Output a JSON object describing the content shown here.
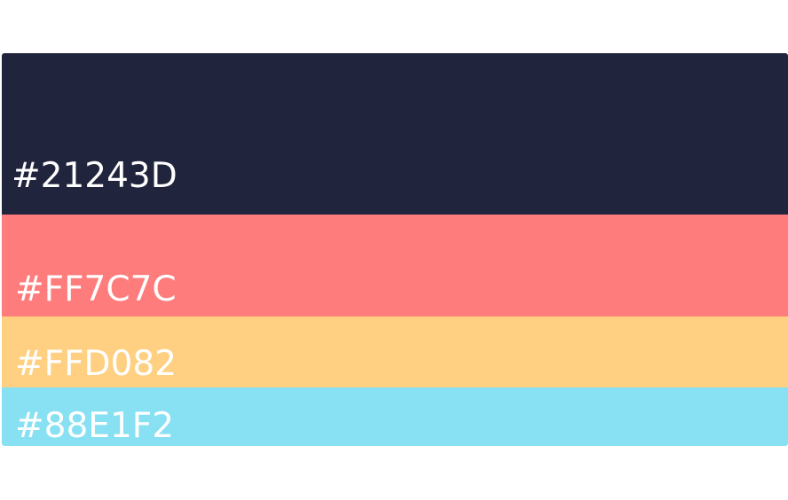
{
  "swatches": [
    {
      "hex": "#21243D",
      "color": "#21243D"
    },
    {
      "hex": "#FF7C7C",
      "color": "#FF7C7C"
    },
    {
      "hex": "#FFD082",
      "color": "#FFD082"
    },
    {
      "hex": "#88E1F2",
      "color": "#88E1F2"
    }
  ]
}
